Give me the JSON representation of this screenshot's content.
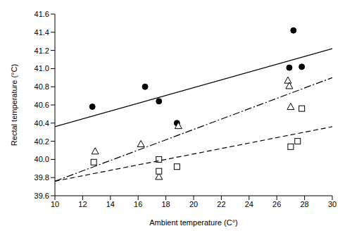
{
  "chart_data": {
    "type": "scatter",
    "x_label": "Ambient temperature (C°)",
    "y_label": "Rectal temperature (°C)",
    "xlim": [
      10,
      30
    ],
    "xticks": [
      10,
      12,
      14,
      16,
      18,
      20,
      22,
      24,
      26,
      28,
      30
    ],
    "ylim": [
      39.6,
      41.6
    ],
    "yticks": [
      39.6,
      39.8,
      {
        "value": 40,
        "label": "40.0"
      },
      40.2,
      40.4,
      40.6,
      40.8,
      {
        "value": 41,
        "label": "41.0"
      },
      41.2,
      41.4,
      41.6
    ],
    "grid": false,
    "series": [
      {
        "type": "scatter",
        "marker": "circle",
        "color": "#000000",
        "x": [
          12.7,
          16.5,
          17.5,
          18.8,
          26.9,
          27.2,
          27.8
        ],
        "values": [
          40.58,
          40.8,
          40.64,
          40.4,
          41.01,
          41.42,
          41.02
        ]
      },
      {
        "type": "scatter",
        "marker": "open_triangle",
        "color": "#000000",
        "x": [
          12.9,
          16.2,
          17.5,
          18.9,
          26.8,
          26.9,
          27.0
        ],
        "values": [
          40.09,
          40.17,
          39.81,
          40.37,
          40.87,
          40.81,
          40.58
        ]
      },
      {
        "type": "scatter",
        "marker": "open_square",
        "color": "#000000",
        "x": [
          12.8,
          17.5,
          17.5,
          18.8,
          27.0,
          27.5,
          27.8
        ],
        "values": [
          39.97,
          40.0,
          39.87,
          39.92,
          40.14,
          40.2,
          40.56
        ]
      },
      {
        "type": "line",
        "line_style": "solid",
        "color": "#000000",
        "x": [
          10,
          30
        ],
        "values": [
          40.36,
          41.22
        ]
      },
      {
        "type": "line",
        "line_style": "dashdot",
        "color": "#000000",
        "x": [
          10,
          30
        ],
        "values": [
          39.76,
          40.9
        ]
      },
      {
        "type": "line",
        "line_style": "dashed",
        "color": "#000000",
        "x": [
          10,
          30
        ],
        "values": [
          39.76,
          40.36
        ]
      }
    ]
  }
}
